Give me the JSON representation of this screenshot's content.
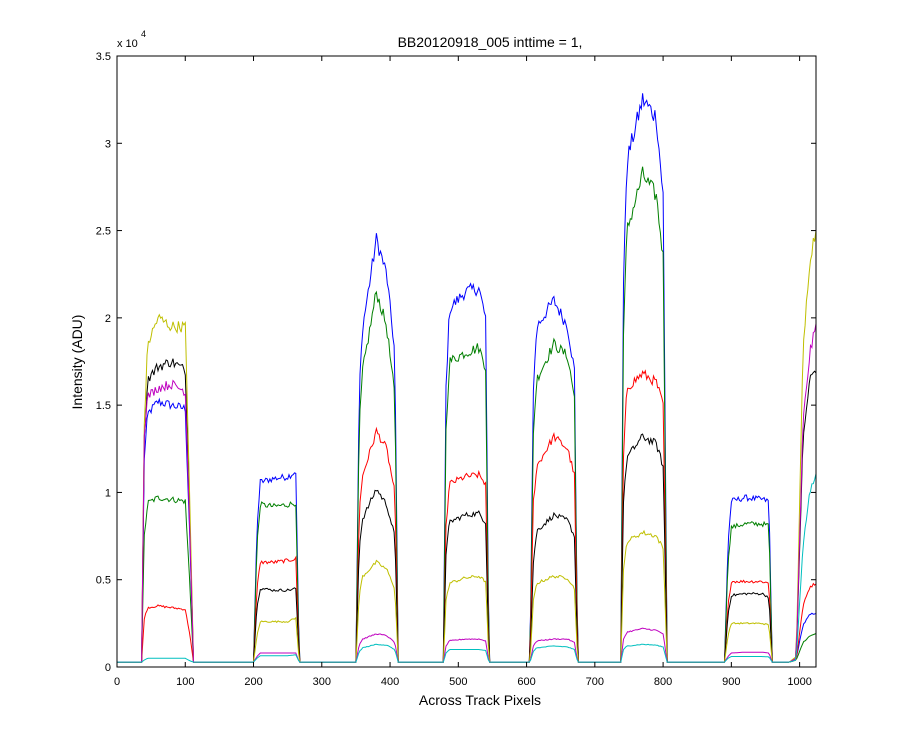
{
  "figure": {
    "background": "#ffffff"
  },
  "chart_data": {
    "type": "line",
    "title": "BB20120918_005 inttime = 1,",
    "xlabel": "Across Track Pixels",
    "ylabel": "Intensity (ADU)",
    "xlim": [
      0,
      1024
    ],
    "ylim": [
      0,
      35000
    ],
    "y_exponent_label": "x 10",
    "y_exponent": "4",
    "x_ticks": [
      0,
      100,
      200,
      300,
      400,
      500,
      600,
      700,
      800,
      900,
      1000
    ],
    "x_tick_labels": [
      "0",
      "100",
      "200",
      "300",
      "400",
      "500",
      "600",
      "700",
      "800",
      "900",
      "1000"
    ],
    "y_ticks": [
      0,
      5000,
      10000,
      15000,
      20000,
      25000,
      30000,
      35000
    ],
    "y_tick_labels": [
      "0",
      "0.5",
      "1",
      "1.5",
      "2",
      "2.5",
      "3",
      "3.5"
    ],
    "grid": false,
    "legend": "none",
    "baseline": 280,
    "x": [
      0,
      36,
      40,
      45,
      60,
      80,
      100,
      107,
      112,
      200,
      205,
      210,
      230,
      250,
      262,
      267,
      350,
      355,
      360,
      380,
      395,
      407,
      412,
      478,
      482,
      487,
      510,
      530,
      540,
      545,
      605,
      610,
      615,
      640,
      660,
      670,
      675,
      738,
      742,
      747,
      770,
      790,
      800,
      806,
      811,
      890,
      895,
      900,
      920,
      945,
      955,
      960,
      985,
      995,
      1005,
      1015,
      1024
    ],
    "series": [
      {
        "color": "#0000ff",
        "values": [
          280,
          280,
          12000,
          14500,
          15200,
          15000,
          14800,
          7000,
          280,
          280,
          8000,
          10600,
          10800,
          10900,
          11200,
          280,
          280,
          16000,
          19500,
          24500,
          22500,
          18000,
          280,
          280,
          16000,
          20500,
          21500,
          21700,
          20000,
          280,
          280,
          16000,
          19500,
          21000,
          19500,
          17000,
          280,
          280,
          22000,
          29000,
          32500,
          31500,
          27000,
          280,
          280,
          280,
          7000,
          9500,
          9700,
          9600,
          9500,
          280,
          280,
          500,
          2400,
          3000,
          3100
        ]
      },
      {
        "color": "#007f00",
        "values": [
          280,
          280,
          7500,
          9400,
          9700,
          9600,
          9500,
          4500,
          280,
          280,
          7000,
          9300,
          9200,
          9300,
          9400,
          280,
          280,
          14000,
          17000,
          21500,
          19500,
          15500,
          280,
          280,
          13500,
          17500,
          18000,
          18300,
          17200,
          280,
          280,
          13500,
          16500,
          18500,
          17800,
          15500,
          280,
          280,
          19000,
          25000,
          28200,
          27000,
          23500,
          280,
          280,
          280,
          6000,
          8000,
          8200,
          8200,
          8100,
          280,
          280,
          400,
          1400,
          1800,
          1900
        ]
      },
      {
        "color": "#ff0000",
        "values": [
          280,
          280,
          2800,
          3400,
          3500,
          3400,
          3300,
          1800,
          280,
          280,
          4500,
          6000,
          6000,
          6100,
          6200,
          280,
          280,
          9000,
          11000,
          13500,
          12500,
          10000,
          280,
          280,
          8000,
          10500,
          10900,
          11000,
          10500,
          280,
          280,
          9500,
          11500,
          13200,
          12500,
          11000,
          280,
          280,
          12000,
          16000,
          16800,
          16300,
          15000,
          280,
          280,
          280,
          3500,
          4900,
          4900,
          4900,
          4800,
          280,
          280,
          400,
          3500,
          4600,
          4800
        ]
      },
      {
        "color": "#000000",
        "values": [
          280,
          280,
          13000,
          16500,
          17200,
          17500,
          17000,
          8000,
          280,
          280,
          3500,
          4500,
          4400,
          4400,
          4500,
          280,
          280,
          7000,
          8500,
          10200,
          9300,
          7500,
          280,
          280,
          6500,
          8300,
          8700,
          8800,
          8300,
          280,
          280,
          6000,
          7800,
          8700,
          8400,
          7500,
          280,
          280,
          9500,
          12000,
          13200,
          12800,
          11500,
          280,
          280,
          280,
          3000,
          4100,
          4200,
          4200,
          4000,
          280,
          280,
          500,
          13000,
          16500,
          17100
        ]
      },
      {
        "color": "#bfbf00",
        "values": [
          280,
          280,
          14000,
          18500,
          20000,
          19500,
          19500,
          9000,
          280,
          280,
          1800,
          2600,
          2600,
          2600,
          2800,
          280,
          280,
          4200,
          5200,
          6000,
          5600,
          4500,
          280,
          280,
          3800,
          4800,
          5100,
          5200,
          4900,
          280,
          280,
          3800,
          4800,
          5200,
          5100,
          4500,
          280,
          280,
          5500,
          7200,
          7700,
          7500,
          6800,
          280,
          280,
          280,
          1800,
          2500,
          2500,
          2500,
          2400,
          280,
          280,
          600,
          18000,
          23500,
          25000
        ]
      },
      {
        "color": "#bf00bf",
        "values": [
          280,
          280,
          13500,
          15500,
          16000,
          16200,
          15800,
          7500,
          280,
          280,
          600,
          800,
          800,
          800,
          800,
          280,
          280,
          1300,
          1600,
          1900,
          1800,
          1400,
          280,
          280,
          1200,
          1500,
          1600,
          1600,
          1500,
          280,
          280,
          1200,
          1500,
          1600,
          1600,
          1400,
          280,
          280,
          1600,
          2000,
          2200,
          2100,
          1900,
          280,
          280,
          280,
          600,
          800,
          850,
          850,
          800,
          280,
          280,
          500,
          14000,
          18000,
          19500
        ]
      },
      {
        "color": "#00bfbf",
        "values": [
          280,
          280,
          400,
          500,
          500,
          500,
          500,
          350,
          280,
          280,
          500,
          650,
          650,
          650,
          700,
          280,
          280,
          900,
          1100,
          1300,
          1250,
          1000,
          280,
          280,
          800,
          1000,
          1000,
          1000,
          950,
          280,
          280,
          900,
          1100,
          1200,
          1150,
          1000,
          280,
          280,
          1000,
          1200,
          1300,
          1250,
          1150,
          280,
          280,
          280,
          500,
          600,
          600,
          600,
          580,
          280,
          280,
          400,
          7000,
          10000,
          11000
        ]
      }
    ]
  }
}
